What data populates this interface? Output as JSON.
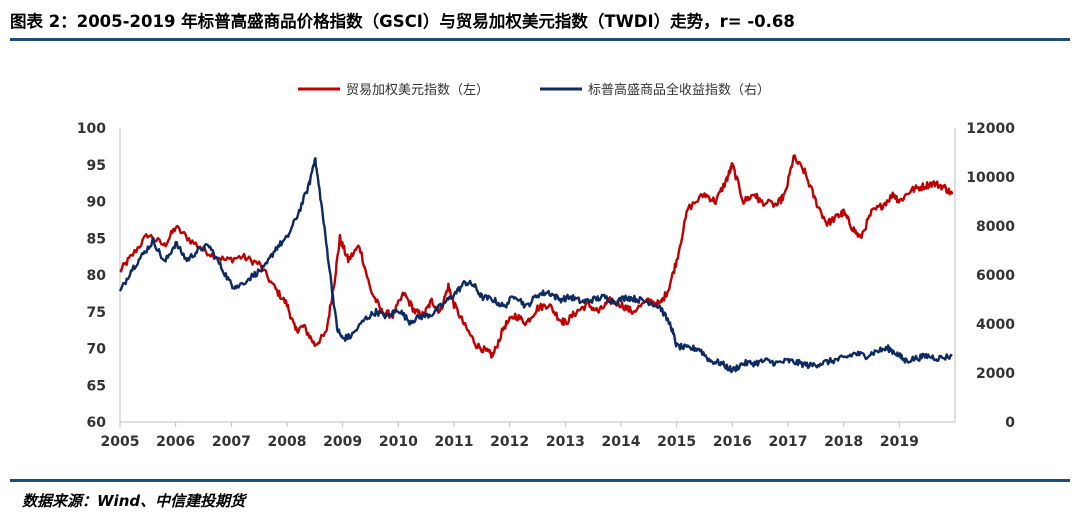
{
  "title": "图表 2：2005-2019 年标普高盛商品价格指数（GSCI）与贸易加权美元指数（TWDI）走势，r= -0.68",
  "source": "数据来源：Wind、中信建投期货",
  "colors": {
    "series_red": "#c00000",
    "series_navy": "#0d2a63",
    "rule": "#1f4e79",
    "axis": "#bfbfbf"
  },
  "chart_data": {
    "type": "line",
    "title": "",
    "xlabel": "",
    "ylabel": "",
    "x_ticks": [
      "2005",
      "2006",
      "2007",
      "2008",
      "2009",
      "2010",
      "2011",
      "2012",
      "2013",
      "2014",
      "2015",
      "2016",
      "2017",
      "2018",
      "2019"
    ],
    "y_left": {
      "lim": [
        60,
        100
      ],
      "ticks": [
        "60",
        "65",
        "70",
        "75",
        "80",
        "85",
        "90",
        "95",
        "100"
      ]
    },
    "y_right": {
      "lim": [
        0,
        12000
      ],
      "ticks": [
        "0",
        "2000",
        "4000",
        "6000",
        "8000",
        "10000",
        "12000"
      ]
    },
    "legend_position": "top-center",
    "grid": false,
    "series": [
      {
        "name": "贸易加权美元指数（左）",
        "axis": "left",
        "color": "#c00000",
        "x": [
          2005.0,
          2005.2,
          2005.5,
          2005.8,
          2006.0,
          2006.3,
          2006.6,
          2006.9,
          2007.2,
          2007.5,
          2007.8,
          2008.0,
          2008.15,
          2008.3,
          2008.5,
          2008.7,
          2008.85,
          2008.95,
          2009.1,
          2009.3,
          2009.5,
          2009.7,
          2009.9,
          2010.1,
          2010.3,
          2010.45,
          2010.6,
          2010.75,
          2010.9,
          2011.0,
          2011.2,
          2011.4,
          2011.6,
          2011.7,
          2011.9,
          2012.1,
          2012.3,
          2012.5,
          2012.7,
          2012.9,
          2013.0,
          2013.2,
          2013.4,
          2013.6,
          2013.8,
          2014.0,
          2014.2,
          2014.5,
          2014.7,
          2014.85,
          2015.0,
          2015.2,
          2015.5,
          2015.7,
          2015.9,
          2016.0,
          2016.2,
          2016.4,
          2016.5,
          2016.8,
          2016.95,
          2017.1,
          2017.3,
          2017.5,
          2017.7,
          2017.9,
          2018.0,
          2018.15,
          2018.3,
          2018.5,
          2018.7,
          2018.9,
          2019.0,
          2019.2,
          2019.4,
          2019.6,
          2019.8,
          2019.95
        ],
        "values": [
          80.5,
          82.5,
          85.5,
          84.0,
          86.5,
          84.5,
          83.0,
          82.0,
          82.5,
          81.5,
          78.0,
          76.0,
          72.5,
          73.0,
          70.5,
          72.0,
          79.0,
          85.0,
          82.0,
          84.0,
          78.0,
          75.0,
          74.5,
          77.5,
          75.0,
          74.5,
          76.5,
          75.0,
          78.5,
          76.0,
          73.0,
          70.5,
          69.5,
          69.0,
          73.0,
          74.5,
          73.5,
          75.5,
          76.0,
          74.0,
          73.5,
          75.0,
          76.0,
          75.0,
          76.5,
          76.0,
          75.0,
          76.5,
          76.0,
          78.0,
          82.0,
          89.0,
          91.0,
          90.0,
          93.0,
          95.0,
          90.0,
          91.0,
          90.0,
          89.5,
          91.0,
          96.0,
          94.0,
          90.0,
          87.0,
          88.0,
          88.5,
          86.5,
          85.0,
          88.5,
          89.5,
          91.0,
          90.0,
          91.5,
          92.0,
          92.5,
          92.0,
          91.0
        ]
      },
      {
        "name": "标普高盛商品全收益指数（右）",
        "axis": "right",
        "color": "#0d2a63",
        "x": [
          2005.0,
          2005.2,
          2005.4,
          2005.6,
          2005.8,
          2006.0,
          2006.2,
          2006.4,
          2006.6,
          2006.8,
          2007.0,
          2007.1,
          2007.4,
          2007.6,
          2007.8,
          2008.0,
          2008.2,
          2008.4,
          2008.5,
          2008.6,
          2008.75,
          2008.9,
          2009.0,
          2009.15,
          2009.4,
          2009.6,
          2009.8,
          2010.0,
          2010.2,
          2010.4,
          2010.6,
          2010.8,
          2011.0,
          2011.2,
          2011.35,
          2011.5,
          2011.7,
          2011.9,
          2012.1,
          2012.3,
          2012.5,
          2012.7,
          2012.9,
          2013.1,
          2013.3,
          2013.5,
          2013.7,
          2013.9,
          2014.1,
          2014.3,
          2014.5,
          2014.7,
          2014.9,
          2015.0,
          2015.2,
          2015.4,
          2015.6,
          2015.8,
          2016.0,
          2016.2,
          2016.4,
          2016.6,
          2016.8,
          2017.0,
          2017.2,
          2017.4,
          2017.6,
          2017.8,
          2018.0,
          2018.2,
          2018.4,
          2018.6,
          2018.8,
          2018.95,
          2019.1,
          2019.3,
          2019.5,
          2019.7,
          2019.95
        ],
        "values": [
          5300,
          6200,
          6800,
          7400,
          6500,
          7300,
          6600,
          7000,
          7200,
          6400,
          5600,
          5500,
          6000,
          6300,
          7100,
          7500,
          8500,
          9700,
          10800,
          9200,
          6500,
          3800,
          3400,
          3500,
          4200,
          4500,
          4300,
          4600,
          4100,
          4300,
          4400,
          4800,
          5200,
          5700,
          5600,
          5100,
          5000,
          4700,
          5200,
          4700,
          5200,
          5300,
          5000,
          5100,
          4900,
          5000,
          5100,
          4900,
          5100,
          5000,
          4900,
          4700,
          3900,
          3100,
          3000,
          3000,
          2500,
          2400,
          2100,
          2400,
          2400,
          2500,
          2400,
          2500,
          2400,
          2300,
          2400,
          2500,
          2600,
          2800,
          2700,
          2900,
          3000,
          2800,
          2500,
          2600,
          2700,
          2600,
          2700
        ]
      }
    ]
  }
}
